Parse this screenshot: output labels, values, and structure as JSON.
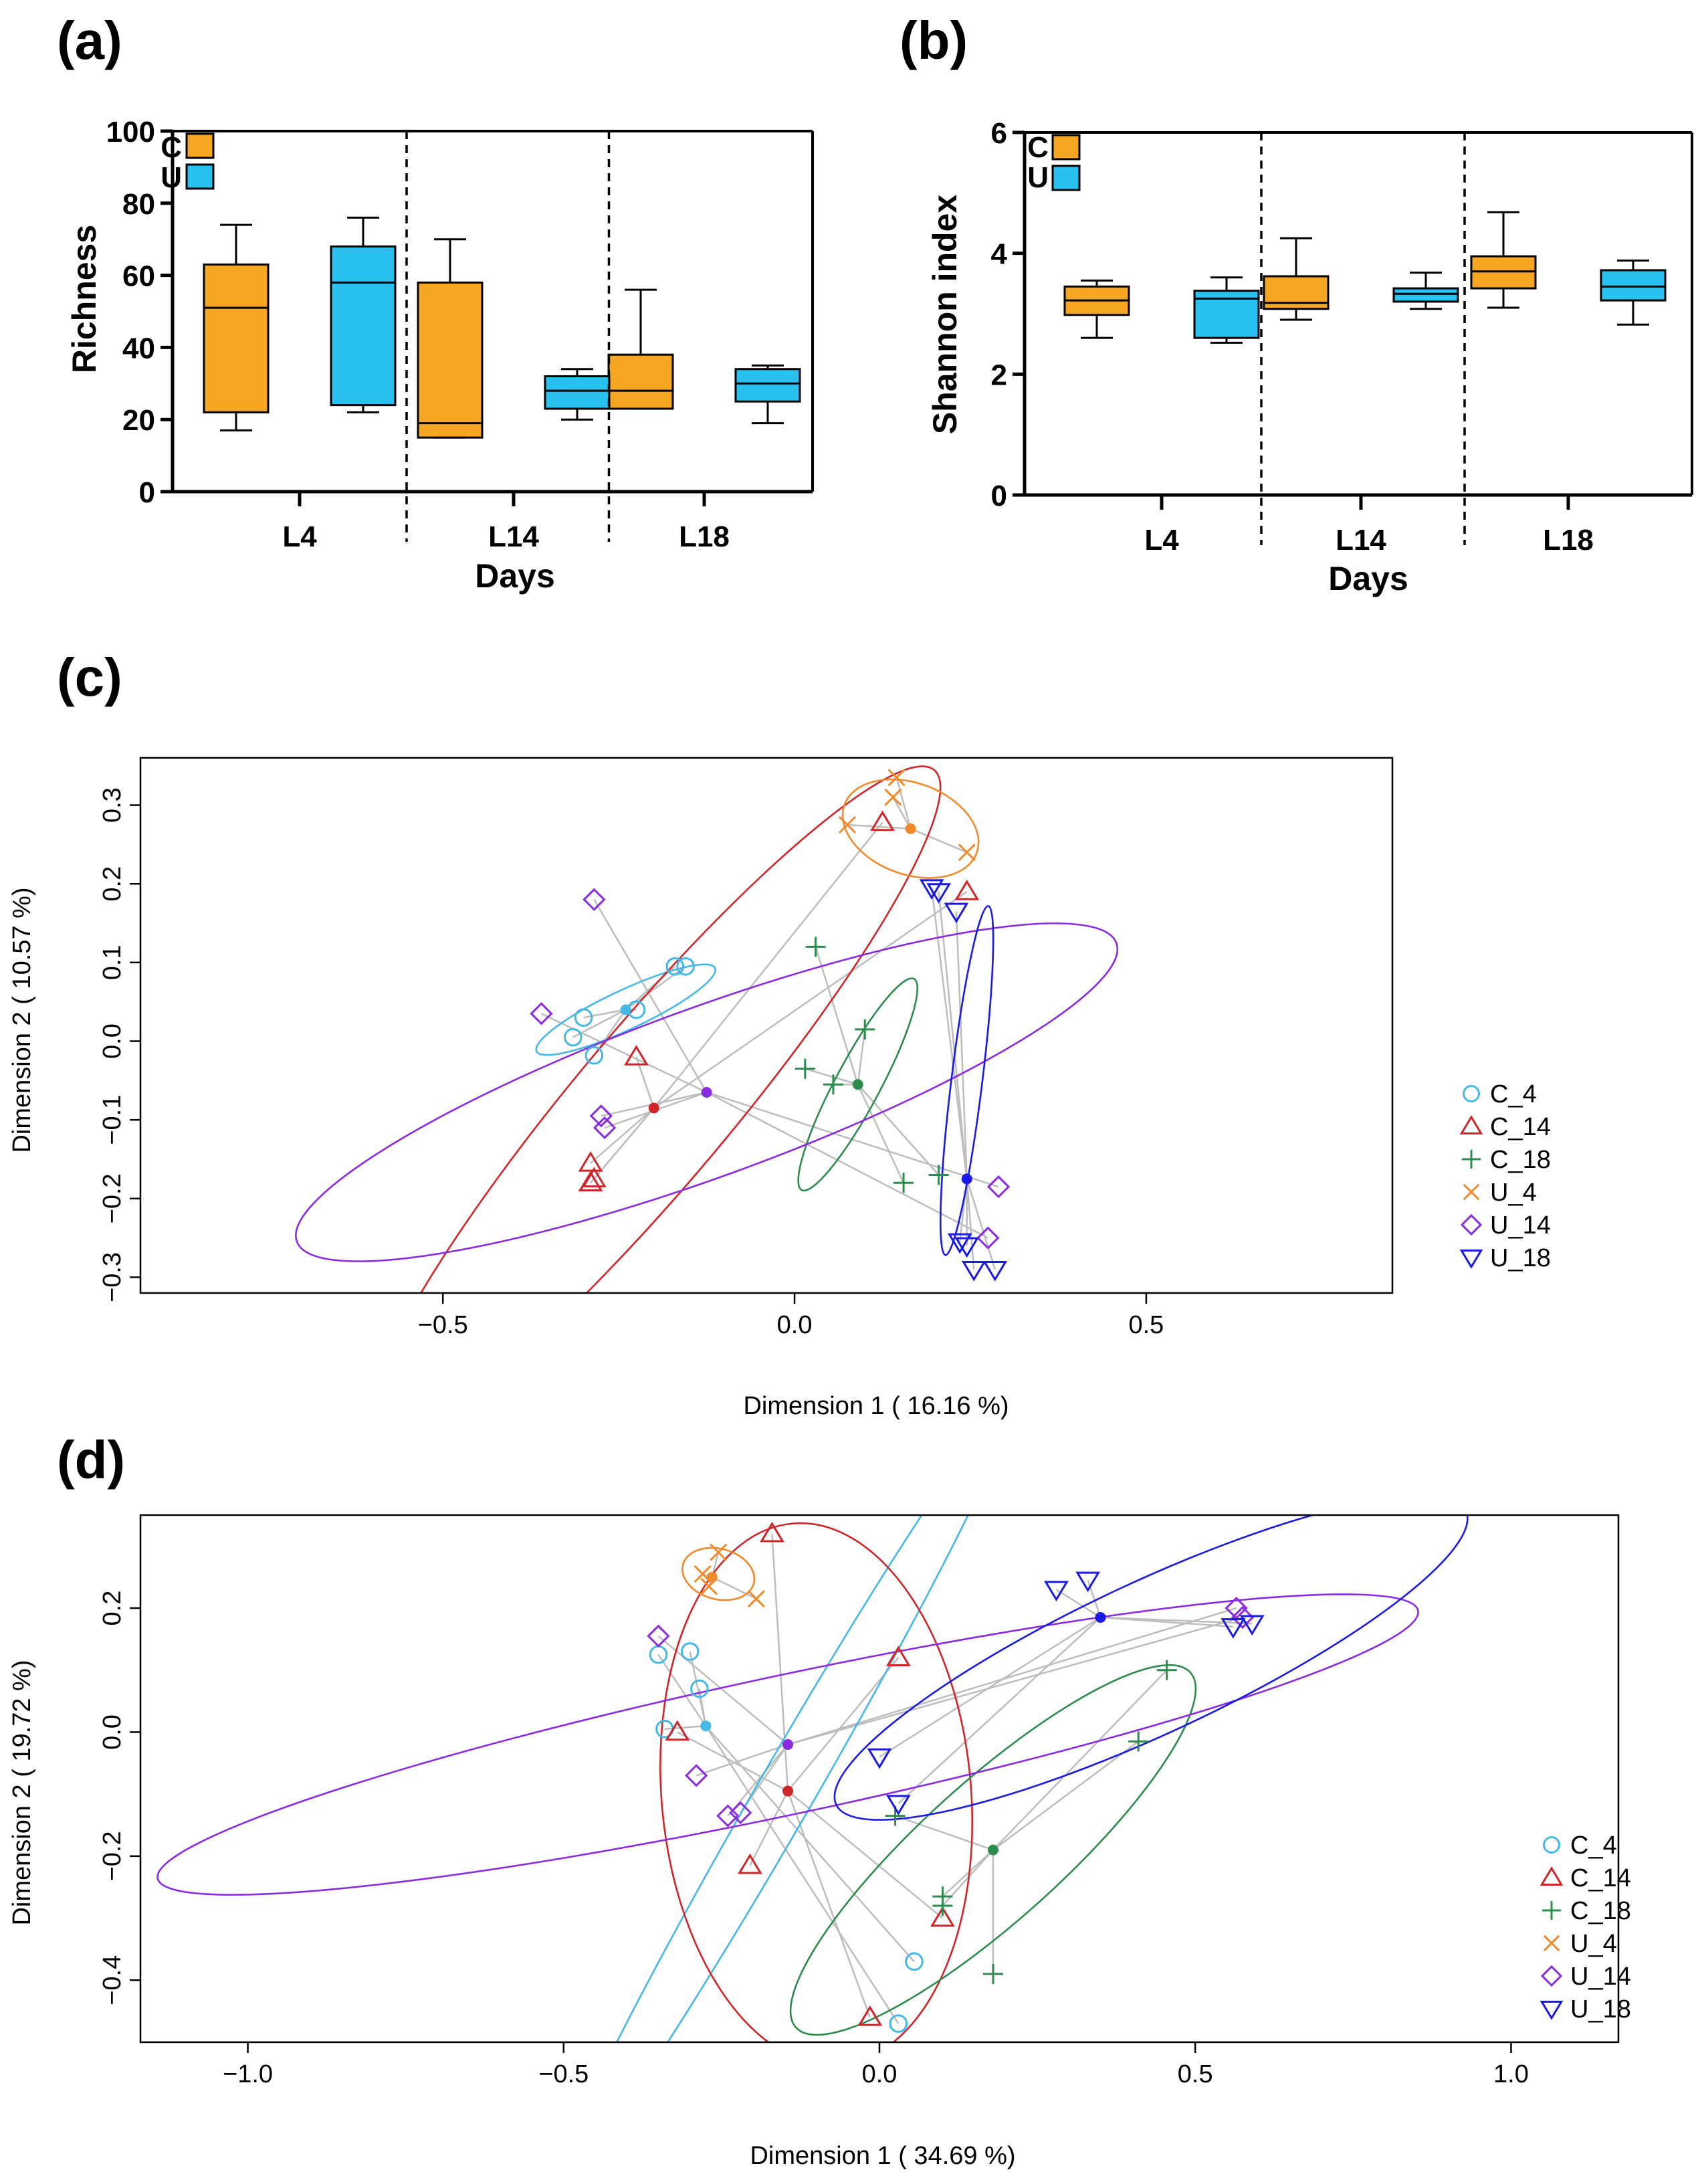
{
  "colors": {
    "C_box": "#F5A623",
    "U_box": "#29C1F0",
    "C_4": "#45B8E6",
    "C_14": "#D0262A",
    "C_18": "#2E8B4E",
    "U_4": "#F08A2A",
    "U_14": "#8A2BE2",
    "U_18": "#1A1AE6",
    "connector": "#BDBDBD"
  },
  "chart_data": [
    {
      "panel": "(a)",
      "type": "box",
      "title": "",
      "xlabel": "Days",
      "ylabel": "Richness",
      "ylim": [
        0,
        100
      ],
      "yticks": [
        "0",
        "20",
        "40",
        "60",
        "80",
        "100"
      ],
      "yticks_values": [
        0,
        20,
        40,
        60,
        80,
        100
      ],
      "categories": [
        "L4",
        "L14",
        "L18"
      ],
      "legend": [
        {
          "key": "C",
          "label": "C",
          "color_key": "C_box"
        },
        {
          "key": "U",
          "label": "U",
          "color_key": "U_box"
        }
      ],
      "series": [
        {
          "name": "C",
          "boxes": [
            {
              "min": 17,
              "q1": 22,
              "median": 51,
              "q3": 63,
              "max": 74
            },
            {
              "min": 15,
              "q1": 15,
              "median": 19,
              "q3": 58,
              "max": 70
            },
            {
              "min": 23,
              "q1": 23,
              "median": 28,
              "q3": 38,
              "max": 56
            }
          ]
        },
        {
          "name": "U",
          "boxes": [
            {
              "min": 22,
              "q1": 24,
              "median": 58,
              "q3": 68,
              "max": 76
            },
            {
              "min": 20,
              "q1": 23,
              "median": 28,
              "q3": 32,
              "max": 34
            },
            {
              "min": 19,
              "q1": 25,
              "median": 30,
              "q3": 34,
              "max": 35
            }
          ]
        }
      ]
    },
    {
      "panel": "(b)",
      "type": "box",
      "title": "",
      "xlabel": "Days",
      "ylabel": "Shannon index",
      "ylim": [
        0,
        6
      ],
      "yticks": [
        "0",
        "2",
        "4",
        "6"
      ],
      "yticks_values": [
        0,
        2,
        4,
        6
      ],
      "categories": [
        "L4",
        "L14",
        "L18"
      ],
      "legend": [
        {
          "key": "C",
          "label": "C",
          "color_key": "C_box"
        },
        {
          "key": "U",
          "label": "U",
          "color_key": "U_box"
        }
      ],
      "series": [
        {
          "name": "C",
          "boxes": [
            {
              "min": 2.6,
              "q1": 2.98,
              "median": 3.22,
              "q3": 3.45,
              "max": 3.55
            },
            {
              "min": 2.9,
              "q1": 3.08,
              "median": 3.18,
              "q3": 3.62,
              "max": 4.25
            },
            {
              "min": 3.1,
              "q1": 3.42,
              "median": 3.7,
              "q3": 3.95,
              "max": 4.68
            }
          ]
        },
        {
          "name": "U",
          "boxes": [
            {
              "min": 2.52,
              "q1": 2.6,
              "median": 3.25,
              "q3": 3.38,
              "max": 3.6
            },
            {
              "min": 3.08,
              "q1": 3.2,
              "median": 3.33,
              "q3": 3.42,
              "max": 3.68
            },
            {
              "min": 2.82,
              "q1": 3.22,
              "median": 3.45,
              "q3": 3.72,
              "max": 3.88
            }
          ]
        }
      ]
    },
    {
      "panel": "(c)",
      "type": "scatter",
      "title": "",
      "xlabel": "Dimension 1 ( 16.16 %)",
      "ylabel": "Dimension 2 ( 10.57 %)",
      "xlim": [
        -0.93,
        0.85
      ],
      "ylim": [
        -0.32,
        0.36
      ],
      "xticks": [
        "−0.5",
        "0.0",
        "0.5"
      ],
      "xticks_values": [
        -0.5,
        0,
        0.5
      ],
      "yticks": [
        "−0.3",
        "−0.2",
        "−0.1",
        "0.0",
        "0.1",
        "0.2",
        "0.3"
      ],
      "yticks_values": [
        -0.3,
        -0.2,
        -0.1,
        0,
        0.1,
        0.2,
        0.3
      ],
      "legend_position": "right",
      "series": [
        {
          "name": "C_4",
          "symbol": "circle",
          "color_key": "C_4",
          "centroid": [
            -0.24,
            0.04
          ],
          "points": [
            [
              -0.17,
              0.095
            ],
            [
              -0.155,
              0.095
            ],
            [
              -0.225,
              0.04
            ],
            [
              -0.3,
              0.03
            ],
            [
              -0.285,
              -0.018
            ],
            [
              -0.315,
              0.005
            ]
          ],
          "ellipse": {
            "cx": -0.24,
            "cy": 0.04,
            "rx": 0.14,
            "ry": 0.028,
            "angle_deg": 25
          }
        },
        {
          "name": "C_14",
          "symbol": "triangle",
          "color_key": "C_14",
          "centroid": [
            -0.2,
            -0.085
          ],
          "points": [
            [
              -0.225,
              -0.02
            ],
            [
              -0.29,
              -0.155
            ],
            [
              -0.285,
              -0.175
            ],
            [
              -0.29,
              -0.18
            ],
            [
              0.125,
              0.278
            ],
            [
              0.245,
              0.19
            ]
          ],
          "ellipse": {
            "cx": -0.2,
            "cy": -0.08,
            "rx": 0.62,
            "ry": 0.11,
            "angle_deg": 50
          }
        },
        {
          "name": "C_18",
          "symbol": "plus",
          "color_key": "C_18",
          "centroid": [
            0.09,
            -0.055
          ],
          "points": [
            [
              0.03,
              0.12
            ],
            [
              0.1,
              0.015
            ],
            [
              0.015,
              -0.035
            ],
            [
              0.055,
              -0.055
            ],
            [
              0.155,
              -0.18
            ],
            [
              0.205,
              -0.17
            ]
          ],
          "ellipse": {
            "cx": 0.09,
            "cy": -0.055,
            "rx": 0.17,
            "ry": 0.032,
            "angle_deg": 62
          }
        },
        {
          "name": "U_4",
          "symbol": "x",
          "color_key": "U_4",
          "centroid": [
            0.165,
            0.27
          ],
          "points": [
            [
              0.14,
              0.31
            ],
            [
              0.145,
              0.335
            ],
            [
              0.075,
              0.275
            ],
            [
              0.245,
              0.24
            ]
          ],
          "ellipse": {
            "cx": 0.165,
            "cy": 0.27,
            "rx": 0.1,
            "ry": 0.065,
            "angle_deg": -20
          }
        },
        {
          "name": "U_14",
          "symbol": "diamond",
          "color_key": "U_14",
          "centroid": [
            -0.125,
            -0.065
          ],
          "points": [
            [
              -0.285,
              0.18
            ],
            [
              -0.36,
              0.035
            ],
            [
              -0.275,
              -0.095
            ],
            [
              -0.27,
              -0.11
            ],
            [
              0.29,
              -0.185
            ],
            [
              0.275,
              -0.25
            ]
          ],
          "ellipse": {
            "cx": -0.125,
            "cy": -0.065,
            "rx": 0.62,
            "ry": 0.12,
            "angle_deg": 20
          }
        },
        {
          "name": "U_18",
          "symbol": "triangle-down",
          "color_key": "U_18",
          "centroid": [
            0.245,
            -0.175
          ],
          "points": [
            [
              0.195,
              0.195
            ],
            [
              0.205,
              0.19
            ],
            [
              0.23,
              0.165
            ],
            [
              0.235,
              -0.255
            ],
            [
              0.245,
              -0.26
            ],
            [
              0.255,
              -0.29
            ],
            [
              0.285,
              -0.29
            ]
          ],
          "ellipse": {
            "cx": 0.245,
            "cy": -0.05,
            "rx": 0.25,
            "ry": 0.022,
            "angle_deg": 83
          }
        }
      ]
    },
    {
      "panel": "(d)",
      "type": "scatter",
      "title": "",
      "xlabel": "Dimension 1 ( 34.69 %)",
      "ylabel": "Dimension 2 ( 19.72 %)",
      "xlim": [
        -1.17,
        1.17
      ],
      "ylim": [
        -0.5,
        0.35
      ],
      "xticks": [
        "−1.0",
        "−0.5",
        "0.0",
        "0.5",
        "1.0"
      ],
      "xticks_values": [
        -1,
        -0.5,
        0,
        0.5,
        1
      ],
      "yticks": [
        "−0.4",
        "−0.2",
        "0.0",
        "0.2"
      ],
      "yticks_values": [
        -0.4,
        -0.2,
        0,
        0.2
      ],
      "legend_position": "right",
      "series": [
        {
          "name": "C_4",
          "symbol": "circle",
          "color_key": "C_4",
          "centroid": [
            -0.275,
            0.01
          ],
          "points": [
            [
              -0.35,
              0.125
            ],
            [
              -0.3,
              0.13
            ],
            [
              -0.285,
              0.07
            ],
            [
              -0.34,
              0.005
            ],
            [
              0.055,
              -0.37
            ],
            [
              0.03,
              -0.47
            ]
          ],
          "ellipse": {
            "cx": -0.15,
            "cy": -0.1,
            "rx": 0.72,
            "ry": 0.045,
            "angle_deg": 60
          }
        },
        {
          "name": "C_14",
          "symbol": "triangle",
          "color_key": "C_14",
          "centroid": [
            -0.145,
            -0.095
          ],
          "points": [
            [
              -0.17,
              0.32
            ],
            [
              0.03,
              0.12
            ],
            [
              -0.32,
              0.0
            ],
            [
              -0.205,
              -0.215
            ],
            [
              0.1,
              -0.3
            ],
            [
              -0.015,
              -0.46
            ]
          ],
          "ellipse": {
            "cx": -0.1,
            "cy": -0.1,
            "rx": 0.245,
            "ry": 0.43,
            "angle_deg": 5
          }
        },
        {
          "name": "C_18",
          "symbol": "plus",
          "color_key": "C_18",
          "centroid": [
            0.18,
            -0.19
          ],
          "points": [
            [
              0.455,
              0.1
            ],
            [
              0.41,
              -0.015
            ],
            [
              0.025,
              -0.135
            ],
            [
              0.1,
              -0.265
            ],
            [
              0.1,
              -0.28
            ],
            [
              0.18,
              -0.39
            ]
          ],
          "ellipse": {
            "cx": 0.18,
            "cy": -0.19,
            "rx": 0.42,
            "ry": 0.11,
            "angle_deg": 42
          }
        },
        {
          "name": "U_4",
          "symbol": "x",
          "color_key": "U_4",
          "centroid": [
            -0.265,
            0.25
          ],
          "points": [
            [
              -0.255,
              0.29
            ],
            [
              -0.28,
              0.255
            ],
            [
              -0.27,
              0.235
            ],
            [
              -0.195,
              0.215
            ]
          ],
          "ellipse": {
            "cx": -0.255,
            "cy": 0.255,
            "rx": 0.058,
            "ry": 0.04,
            "angle_deg": -15
          }
        },
        {
          "name": "U_14",
          "symbol": "diamond",
          "color_key": "U_14",
          "centroid": [
            -0.145,
            -0.02
          ],
          "points": [
            [
              -0.35,
              0.155
            ],
            [
              -0.29,
              -0.07
            ],
            [
              -0.24,
              -0.135
            ],
            [
              -0.22,
              -0.13
            ],
            [
              0.565,
              0.2
            ],
            [
              0.575,
              0.185
            ]
          ],
          "ellipse": {
            "cx": -0.145,
            "cy": -0.02,
            "rx": 1.02,
            "ry": 0.11,
            "angle_deg": 12
          }
        },
        {
          "name": "U_18",
          "symbol": "triangle-down",
          "color_key": "U_18",
          "centroid": [
            0.35,
            0.185
          ],
          "points": [
            [
              0.28,
              0.23
            ],
            [
              0.33,
              0.245
            ],
            [
              0.56,
              0.17
            ],
            [
              0.59,
              0.175
            ],
            [
              0.0,
              -0.04
            ],
            [
              0.03,
              -0.115
            ]
          ],
          "ellipse": {
            "cx": 0.43,
            "cy": 0.12,
            "rx": 0.55,
            "ry": 0.12,
            "angle_deg": 25
          }
        }
      ]
    }
  ],
  "panel_labels": [
    "(a)",
    "(b)",
    "(c)",
    "(d)"
  ]
}
